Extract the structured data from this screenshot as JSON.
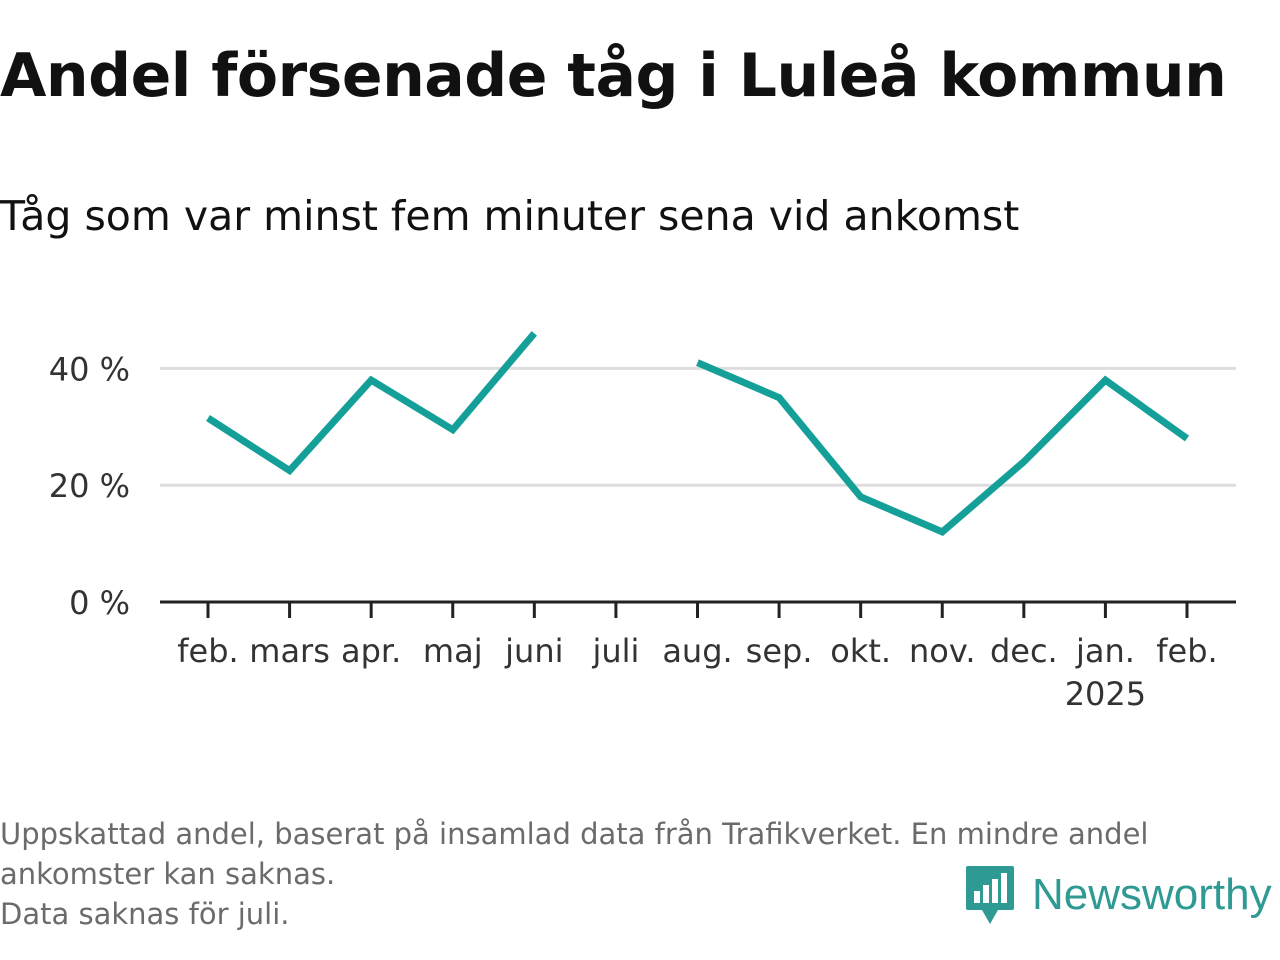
{
  "title": "Andel försenade tåg i Luleå kommun",
  "subtitle": "Tåg som var minst fem minuter sena vid ankomst",
  "notes": [
    "Uppskattad andel, baserat på insamlad data från Trafikverket. En mindre andel",
    "ankomster kan saknas.",
    "Data saknas för juli."
  ],
  "brand": {
    "name": "Newsworthy",
    "icon": "newsworthy-logo-icon",
    "color": "#2f9a94"
  },
  "colors": {
    "line": "#14a098",
    "grid": "#dddddd",
    "axis": "#222222"
  },
  "chart_data": {
    "type": "line",
    "title": "Andel försenade tåg i Luleå kommun",
    "subtitle": "Tåg som var minst fem minuter sena vid ankomst",
    "categories": [
      "feb.",
      "mars",
      "apr.",
      "maj",
      "juni",
      "juli",
      "aug.",
      "sep.",
      "okt.",
      "nov.",
      "dec.",
      "jan.",
      "feb."
    ],
    "category_sublabels": [
      "",
      "",
      "",
      "",
      "",
      "",
      "",
      "",
      "",
      "",
      "",
      "2025",
      ""
    ],
    "series": [
      {
        "values": [
          31.5,
          22.5,
          38,
          29.5,
          46,
          null,
          41,
          35,
          18,
          12,
          24,
          38,
          28
        ]
      }
    ],
    "ylim": [
      0,
      50
    ],
    "yticks": [
      0,
      20,
      40
    ],
    "ytick_labels": [
      "0 %",
      "20 %",
      "40 %"
    ],
    "xlabel": "",
    "ylabel": "",
    "grid": true,
    "legend": false
  }
}
